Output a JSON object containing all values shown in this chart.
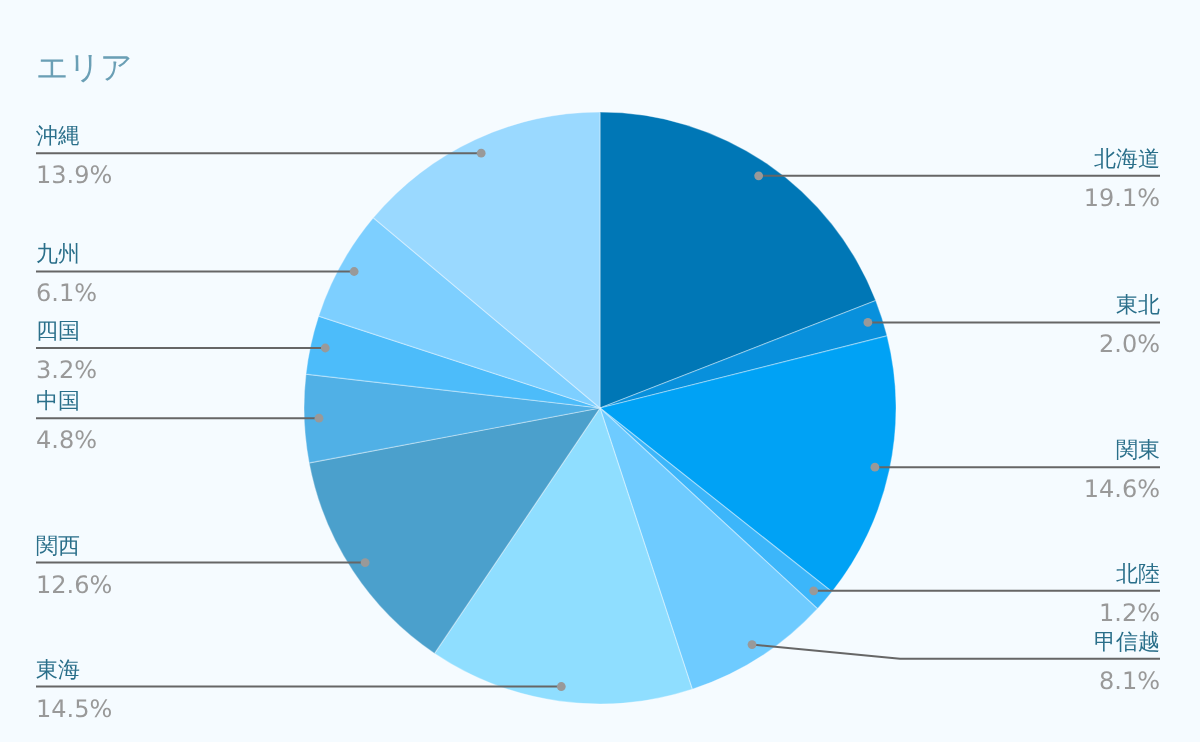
{
  "chart_data": {
    "type": "pie",
    "title": "エリア",
    "categories": [
      "北海道",
      "東北",
      "関東",
      "北陸",
      "甲信越",
      "東海",
      "関西",
      "中国",
      "四国",
      "九州",
      "沖縄"
    ],
    "values": [
      19.1,
      2.0,
      14.6,
      1.2,
      8.1,
      14.5,
      12.6,
      4.8,
      3.2,
      6.1,
      13.9
    ],
    "value_labels": [
      "19.1%",
      "2.0%",
      "14.6%",
      "1.2%",
      "8.1%",
      "14.5%",
      "12.6%",
      "4.8%",
      "3.2%",
      "6.1%",
      "13.9%"
    ],
    "colors": [
      "#0077b6",
      "#0890dc",
      "#00a2f5",
      "#3cb6fa",
      "#6ecbff",
      "#8fdeff",
      "#4ba0cc",
      "#50b0e6",
      "#4cbcfa",
      "#7dcfff",
      "#9ad9ff"
    ]
  }
}
